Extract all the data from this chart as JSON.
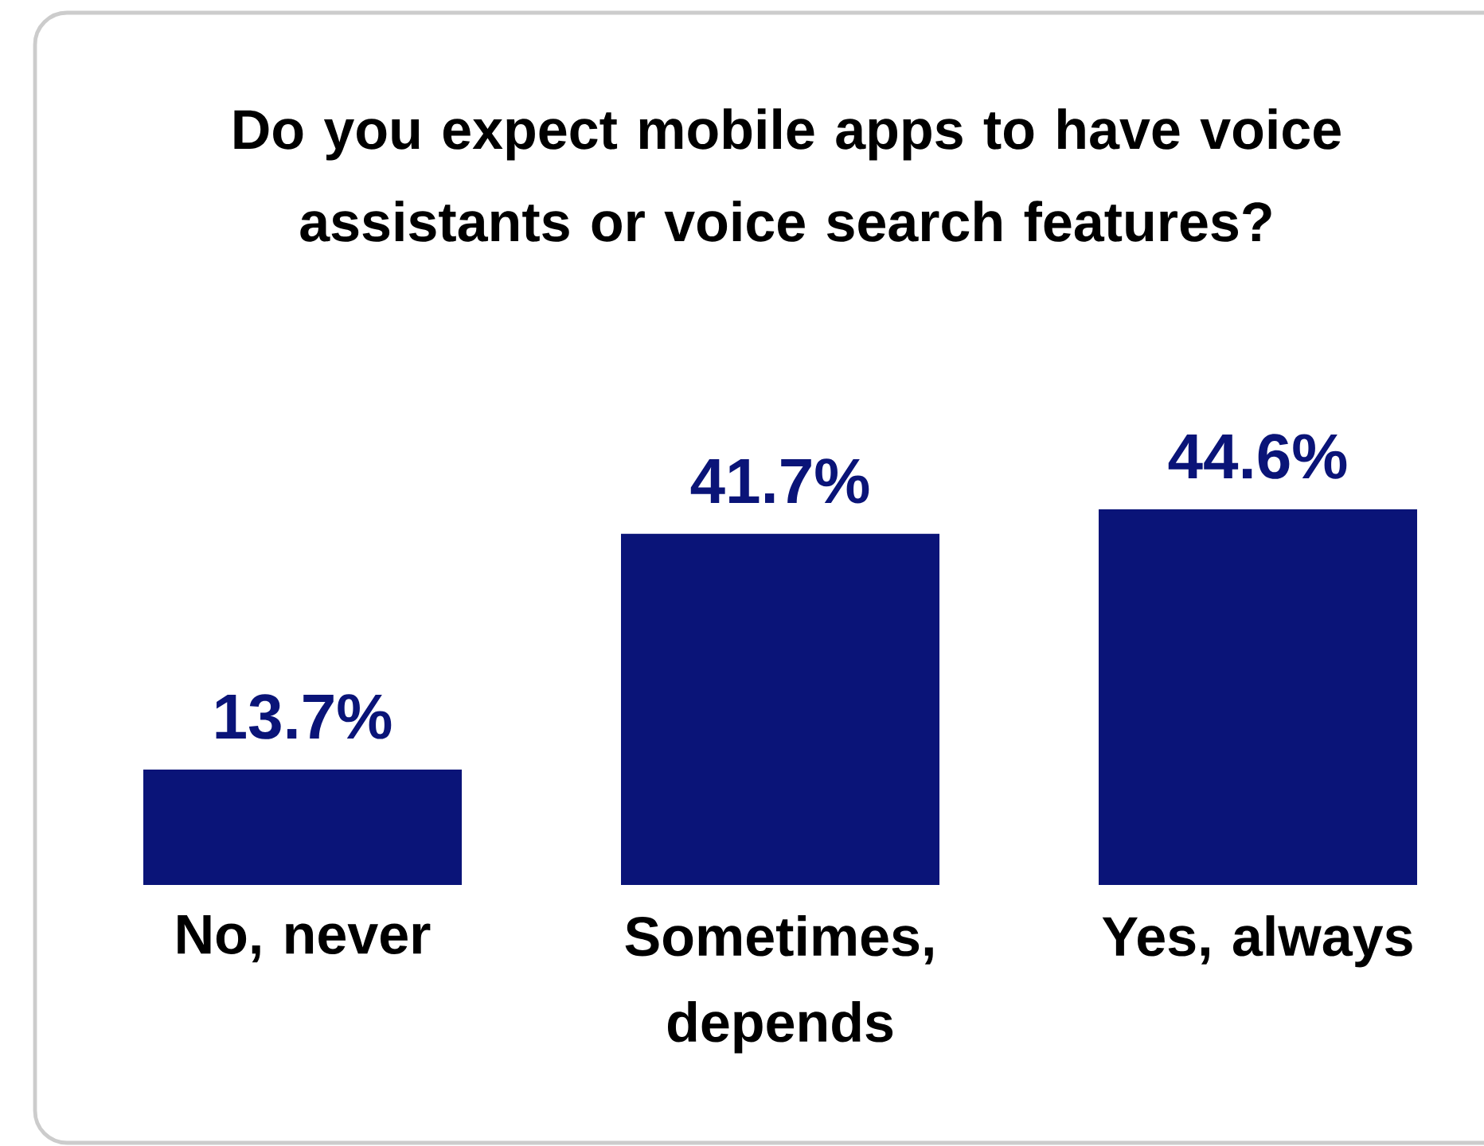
{
  "chart_data": {
    "type": "bar",
    "title": "Do you expect mobile apps to have voice assistants or voice search features?",
    "categories": [
      "No, never",
      "Sometimes, depends",
      "Yes, always"
    ],
    "values": [
      13.7,
      41.7,
      44.6
    ],
    "color": "#0a1478",
    "value_labels": [
      "13.7%",
      "41.7%",
      "44.6%"
    ]
  }
}
